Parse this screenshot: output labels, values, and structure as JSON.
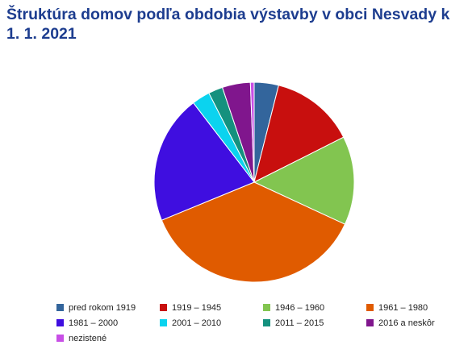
{
  "title": "Štruktúra domov podľa obdobia výstavby v obci Nesvady k 1. 1. 2021",
  "chart_data": {
    "type": "pie",
    "title": "Štruktúra domov podľa obdobia výstavby v obci Nesvady k 1. 1. 2021",
    "legend_position": "bottom",
    "slices": [
      {
        "label": "pred rokom 1919",
        "value": 3.9,
        "color": "#33659c"
      },
      {
        "label": "1919 – 1945",
        "value": 13.5,
        "color": "#c80f0e"
      },
      {
        "label": "1946 – 1960",
        "value": 14.2,
        "color": "#82c550"
      },
      {
        "label": "1961 – 1980",
        "value": 36.5,
        "color": "#e05b00"
      },
      {
        "label": "1981 – 2000",
        "value": 20.6,
        "color": "#3f0ee0"
      },
      {
        "label": "2001 – 2010",
        "value": 2.9,
        "color": "#0bd3ef"
      },
      {
        "label": "2011 – 2015",
        "value": 2.3,
        "color": "#14917e"
      },
      {
        "label": "2016 a neskôr",
        "value": 4.5,
        "color": "#80168d"
      },
      {
        "label": "nezistené",
        "value": 0.6,
        "color": "#c84fe6"
      }
    ]
  }
}
